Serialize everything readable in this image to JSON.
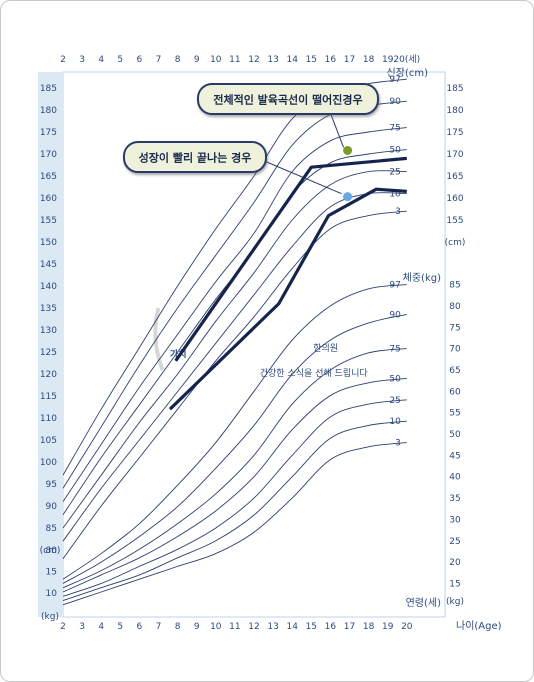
{
  "chart_data": {
    "type": "line",
    "x_ticks": [
      "2",
      "3",
      "4",
      "5",
      "6",
      "7",
      "8",
      "9",
      "10",
      "11",
      "12",
      "13",
      "14",
      "15",
      "16",
      "17",
      "18",
      "19",
      "20"
    ],
    "top_age_end_label": "20(세)",
    "height_label": "신장(cm)",
    "height_unit": "(cm)",
    "weight_label": "체중(kg)",
    "weight_unit": "(kg)",
    "left_height_unit": "(cm)",
    "left_weight_unit": "(kg)",
    "age_label": "연령(세)",
    "age_axis_label": "나이(Age)",
    "left_height_ticks": [
      80,
      85,
      90,
      95,
      100,
      105,
      110,
      115,
      120,
      125,
      130,
      135,
      140,
      145,
      150,
      155,
      160,
      165,
      170,
      175,
      180,
      185
    ],
    "left_weight_ticks": [
      10,
      15
    ],
    "right_height_ticks": [
      155,
      160,
      165,
      170,
      175,
      180,
      185
    ],
    "right_weight_ticks": [
      15,
      20,
      25,
      30,
      35,
      40,
      45,
      50,
      55,
      60,
      65,
      70,
      75,
      80,
      85
    ],
    "percentiles": [
      "97",
      "90",
      "75",
      "50",
      "25",
      "10",
      "3"
    ],
    "height_series": [
      {
        "name": "97",
        "x": [
          2,
          4,
          6,
          8,
          10,
          12,
          14,
          16,
          18,
          20
        ],
        "values": [
          97,
          112,
          126,
          140,
          153,
          165,
          178,
          184,
          186,
          187
        ]
      },
      {
        "name": "90",
        "x": [
          2,
          4,
          6,
          8,
          10,
          12,
          14,
          16,
          18,
          20
        ],
        "values": [
          94,
          108,
          122,
          135,
          147,
          159,
          172,
          179,
          181,
          182
        ]
      },
      {
        "name": "75",
        "x": [
          2,
          4,
          6,
          8,
          10,
          12,
          14,
          16,
          18,
          20
        ],
        "values": [
          91,
          104,
          117,
          129,
          141,
          152,
          166,
          173,
          175,
          176
        ]
      },
      {
        "name": "50",
        "x": [
          2,
          4,
          6,
          8,
          10,
          12,
          14,
          16,
          18,
          20
        ],
        "values": [
          88,
          101,
          113,
          125,
          137,
          148,
          161,
          168,
          170,
          171
        ]
      },
      {
        "name": "25",
        "x": [
          2,
          4,
          6,
          8,
          10,
          12,
          14,
          16,
          18,
          20
        ],
        "values": [
          85,
          97,
          109,
          120,
          132,
          143,
          155,
          163,
          166,
          166
        ]
      },
      {
        "name": "10",
        "x": [
          2,
          4,
          6,
          8,
          10,
          12,
          14,
          16,
          18,
          20
        ],
        "values": [
          82,
          94,
          105,
          116,
          127,
          138,
          149,
          158,
          161,
          161
        ]
      },
      {
        "name": "3",
        "x": [
          2,
          4,
          6,
          8,
          10,
          12,
          14,
          16,
          18,
          20
        ],
        "values": [
          78,
          90,
          101,
          112,
          123,
          133,
          144,
          153,
          156,
          157
        ]
      }
    ],
    "weight_series": [
      {
        "name": "97",
        "x": [
          2,
          4,
          6,
          8,
          10,
          12,
          14,
          16,
          18,
          20
        ],
        "values": [
          16,
          22,
          29,
          38,
          48,
          60,
          72,
          80,
          84,
          85
        ]
      },
      {
        "name": "90",
        "x": [
          2,
          4,
          6,
          8,
          10,
          12,
          14,
          16,
          18,
          20
        ],
        "values": [
          15,
          20,
          26,
          33,
          42,
          52,
          64,
          72,
          76,
          78
        ]
      },
      {
        "name": "75",
        "x": [
          2,
          4,
          6,
          8,
          10,
          12,
          14,
          16,
          18,
          20
        ],
        "values": [
          14,
          18,
          23,
          29,
          36,
          45,
          57,
          65,
          69,
          70
        ]
      },
      {
        "name": "50",
        "x": [
          2,
          4,
          6,
          8,
          10,
          12,
          14,
          16,
          18,
          20
        ],
        "values": [
          13,
          17,
          21,
          26,
          32,
          40,
          51,
          59,
          62,
          63
        ]
      },
      {
        "name": "25",
        "x": [
          2,
          4,
          6,
          8,
          10,
          12,
          14,
          16,
          18,
          20
        ],
        "values": [
          12,
          15,
          19,
          23,
          28,
          35,
          45,
          54,
          57,
          58
        ]
      },
      {
        "name": "10",
        "x": [
          2,
          4,
          6,
          8,
          10,
          12,
          14,
          16,
          18,
          20
        ],
        "values": [
          11,
          14,
          17,
          21,
          25,
          31,
          40,
          49,
          52,
          53
        ]
      },
      {
        "name": "3",
        "x": [
          2,
          4,
          6,
          8,
          10,
          12,
          14,
          16,
          18,
          20
        ],
        "values": [
          10,
          13,
          16,
          19,
          22,
          27,
          35,
          44,
          47,
          48
        ]
      }
    ],
    "highlight_series": [
      {
        "x": [
          7.9,
          15,
          20
        ],
        "values": [
          123,
          167,
          169
        ]
      },
      {
        "x": [
          7.6,
          13.3,
          15.9,
          18.4,
          20
        ],
        "values": [
          112,
          136,
          156,
          162,
          161.5
        ]
      }
    ],
    "markers": [
      {
        "x": 16.9,
        "value": 170.8,
        "color": "#7a9a2b"
      },
      {
        "x": 16.9,
        "value": 160.3,
        "color": "#67a8e5"
      }
    ],
    "callouts": [
      {
        "text": "전체적인 발육곡선이 떨어진경우"
      },
      {
        "text": "성장이 빨리 끝나는 경우"
      }
    ],
    "watermark": {
      "logo": "가치",
      "name": "한의원",
      "slogan": "건강한 소식을 선해 드립니다"
    },
    "colors": {
      "line": "#2d3f6e",
      "highlight": "#16244b",
      "text": "#2e4a7d",
      "callout_border": "#2a3a66",
      "callout_fill": "#eef2dd",
      "band": "#dbe9f5"
    }
  }
}
